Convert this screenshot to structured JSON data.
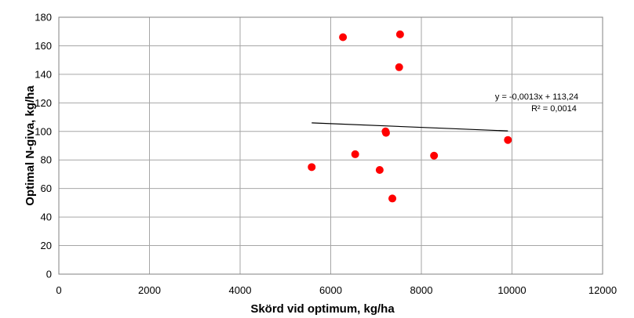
{
  "chart_data": {
    "type": "scatter",
    "title": "",
    "xlabel": "Skörd vid optimum, kg/ha",
    "ylabel": "Optimal N-giva, kg/ha",
    "xlim": [
      0,
      12000
    ],
    "ylim": [
      0,
      180
    ],
    "x_ticks": [
      0,
      2000,
      4000,
      6000,
      8000,
      10000,
      12000
    ],
    "y_ticks": [
      0,
      20,
      40,
      60,
      80,
      100,
      120,
      140,
      160,
      180
    ],
    "grid": true,
    "legend": "none",
    "colors": {
      "points": "#ff0000",
      "trendline": "#000000",
      "grid": "#a6a6a6"
    },
    "series": [
      {
        "x": [
          6270,
          7530,
          7510,
          7210,
          7220,
          9910,
          6540,
          8280,
          5580,
          7080,
          7360
        ],
        "y": [
          166,
          168,
          145,
          100,
          99,
          94,
          84,
          83,
          75,
          73,
          53
        ]
      }
    ],
    "trendline": {
      "x_range": [
        5580,
        9910
      ],
      "slope": -0.0013,
      "intercept": 113.24,
      "equation": "y = -0,0013x + 113,24",
      "r_squared": "R² = 0,0014"
    }
  }
}
